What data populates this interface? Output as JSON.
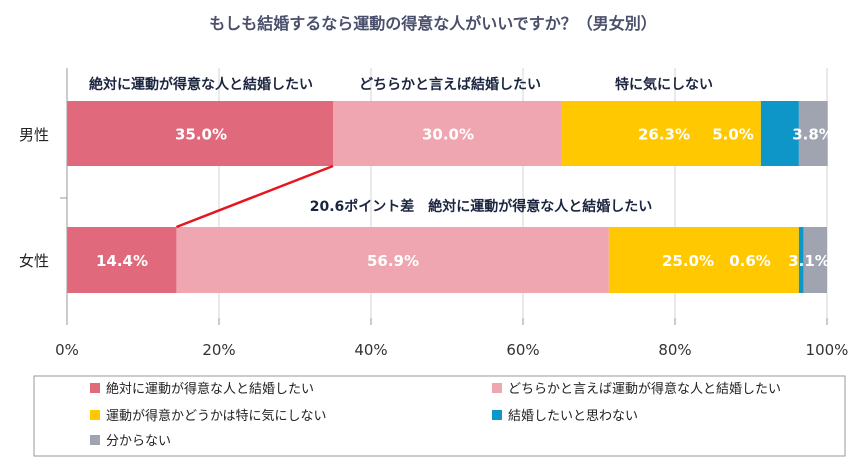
{
  "chart_data": {
    "type": "bar",
    "orientation": "horizontal-stacked-100",
    "title": "もしも結婚するなら運動の得意な人がいいですか？（男女別）",
    "categories": [
      "男性",
      "女性"
    ],
    "series": [
      {
        "name": "絶対に運動が得意な人と結婚したい",
        "values": [
          35.0,
          14.4
        ],
        "labels": [
          "35.0%",
          "14.4%"
        ],
        "color": "#e06a7c"
      },
      {
        "name": "どちらかと言えば運動が得意な人と結婚したい",
        "values": [
          30.0,
          56.9
        ],
        "labels": [
          "30.0%",
          "56.9%"
        ],
        "color": "#f0a6b1"
      },
      {
        "name": "運動が得意かどうかは特に気にしない",
        "values": [
          26.3,
          25.0
        ],
        "labels": [
          "26.3%",
          "25.0%"
        ],
        "color": "#ffc800"
      },
      {
        "name": "結婚したいと思わない",
        "values": [
          5.0,
          0.6
        ],
        "labels": [
          "5.0%",
          "0.6%"
        ],
        "color": "#0e96c8"
      },
      {
        "name": "分からない",
        "values": [
          3.8,
          3.1
        ],
        "labels": [
          "3.8%",
          "3.1%"
        ],
        "color": "#a0a4b0"
      }
    ],
    "xlim": [
      0,
      100
    ],
    "xticks": [
      "0%",
      "20%",
      "40%",
      "60%",
      "80%",
      "100%"
    ],
    "segment_headers": [
      "絶対に運動が得意な人と結婚したい",
      "どちらかと言えば結婚したい",
      "特に気にしない"
    ],
    "annotation": "20.6ポイント差　絶対に運動が得意な人と結婚したい",
    "legend_position": "bottom",
    "grid": true
  }
}
